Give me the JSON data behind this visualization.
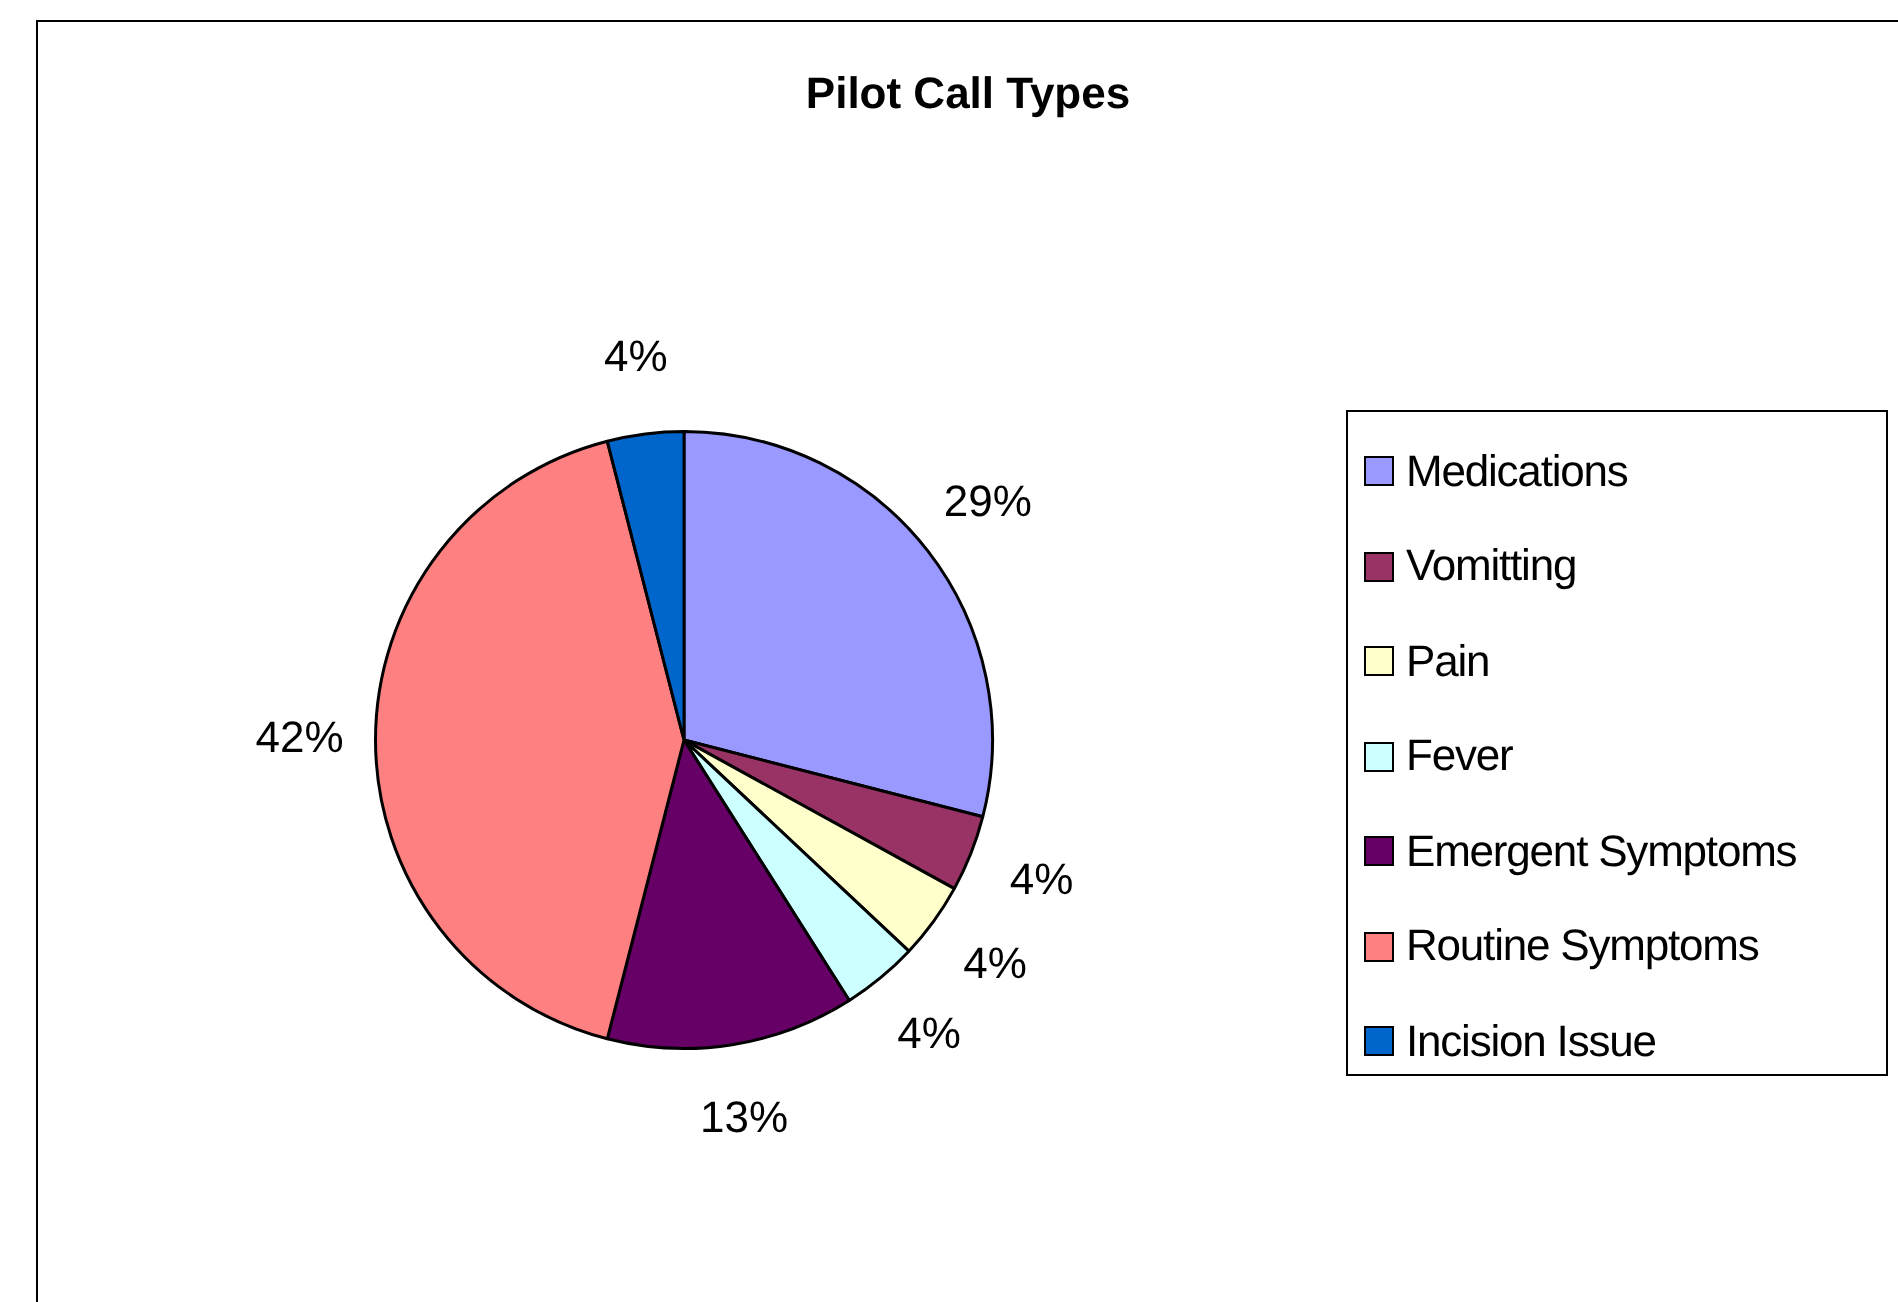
{
  "chart_data": {
    "type": "pie",
    "title": "Pilot Call Types",
    "categories": [
      "Medications",
      "Vomitting",
      "Pain",
      "Fever",
      "Emergent Symptoms",
      "Routine Symptoms",
      "Incision Issue"
    ],
    "values": [
      29,
      4,
      4,
      4,
      13,
      42,
      4
    ],
    "colors": [
      "#9999ff",
      "#993366",
      "#ffffcc",
      "#ccffff",
      "#660066",
      "#ff8080",
      "#0066cc"
    ],
    "value_labels": [
      "29%",
      "4%",
      "4%",
      "4%",
      "13%",
      "42%",
      "4%"
    ],
    "legend": "right"
  }
}
